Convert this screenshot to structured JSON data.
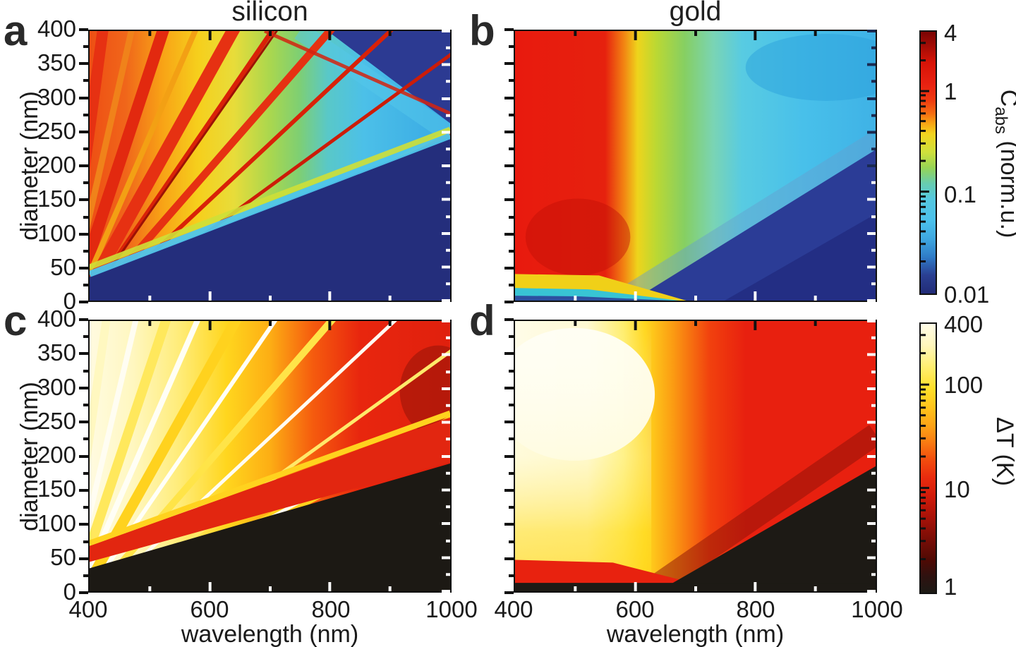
{
  "titles": {
    "left": "silicon",
    "right": "gold"
  },
  "panels": {
    "a": "a",
    "b": "b",
    "c": "c",
    "d": "d"
  },
  "axes": {
    "y_label": "diameter (nm)",
    "x_label": "wavelength (nm)",
    "y_ticks": [
      "400",
      "350",
      "300",
      "250",
      "200",
      "150",
      "100",
      "50",
      "0"
    ],
    "x_ticks": [
      "400",
      "600",
      "800",
      "1000"
    ]
  },
  "colorbars": {
    "abs": {
      "sym": "C",
      "sub": "abs",
      "unit": " (norm.u.)",
      "ticks": [
        "4",
        "1",
        "0.1",
        "0.01"
      ]
    },
    "dt": {
      "title": "ΔT (K)",
      "ticks": [
        "400",
        "100",
        "10",
        "1"
      ]
    }
  },
  "chart_data": [
    {
      "id": "a",
      "type": "heatmap",
      "title": "silicon",
      "panel_letter": "a",
      "x": {
        "label": "wavelength (nm)",
        "range": [
          400,
          1000
        ],
        "ticks": [
          400,
          600,
          800,
          1000
        ],
        "minor_ticks": [
          500,
          700,
          900
        ]
      },
      "y": {
        "label": "diameter (nm)",
        "range": [
          0,
          400
        ],
        "ticks": [
          0,
          50,
          100,
          150,
          200,
          250,
          300,
          350,
          400
        ]
      },
      "z": {
        "label": "Cabs (norm.u.)",
        "scale": "log",
        "range": [
          0.01,
          4
        ],
        "ticks": [
          4,
          1,
          0.1,
          0.01
        ],
        "colormap": "jet"
      },
      "description": "Fan of narrow Mie-resonance absorption bands radiating from small diameter / short wavelength toward large diameter / long wavelength. Cabs ~ 1-4 (red bands) over orange-yellow background in the upper-left half; cyan wedges (~0.05-0.1) between resonance orders at long wavelength; Cabs ~ 0.01 (dark blue) in the lower-right triangle below the fundamental resonance, whose edge runs from about (400 nm, 55 nm) to (1000 nm, 270 nm)."
    },
    {
      "id": "b",
      "type": "heatmap",
      "title": "gold",
      "panel_letter": "b",
      "x": {
        "label": "wavelength (nm)",
        "range": [
          400,
          1000
        ],
        "ticks": [
          400,
          600,
          800,
          1000
        ],
        "minor_ticks": [
          500,
          700,
          900
        ]
      },
      "y": {
        "label": "diameter (nm)",
        "range": [
          0,
          400
        ],
        "ticks": [
          0,
          50,
          100,
          150,
          200,
          250,
          300,
          350,
          400
        ]
      },
      "z": {
        "label": "Cabs (norm.u.)",
        "scale": "log",
        "range": [
          0.01,
          4
        ],
        "ticks": [
          4,
          1,
          0.1,
          0.01
        ],
        "colormap": "jet"
      },
      "description": "High absorption (Cabs ~ 1-4, red) for 400-550 nm at all diameters; sharp yellow-green transition band near 550-620 nm; low absorption (cyan, ~0.05-0.1) beyond 650 nm at large diameters, decreasing to dark blue (~0.01) toward long wavelengths and small diameters (lower right); thin yellow strip near zero diameter at short wavelengths."
    },
    {
      "id": "c",
      "type": "heatmap",
      "title": "silicon",
      "panel_letter": "c",
      "x": {
        "label": "wavelength (nm)",
        "range": [
          400,
          1000
        ],
        "ticks": [
          400,
          600,
          800,
          1000
        ],
        "minor_ticks": [
          500,
          700,
          900
        ]
      },
      "y": {
        "label": "diameter (nm)",
        "range": [
          0,
          400
        ],
        "ticks": [
          0,
          50,
          100,
          150,
          200,
          250,
          300,
          350,
          400
        ]
      },
      "z": {
        "label": "ΔT (K)",
        "scale": "log",
        "range": [
          1,
          400
        ],
        "ticks": [
          400,
          100,
          10,
          1
        ],
        "colormap": "hot"
      },
      "description": "Photoinduced heating along silicon Mie resonances: bright white-yellow bands (ΔT ~ 100-400 K) fanning from lower-left over yellow-orange background, red bands (~10-50 K) between resonances at long wavelength; negligible heating (ΔT ~ 1 K, black) in the lower-right triangle below the fundamental resonance."
    },
    {
      "id": "d",
      "type": "heatmap",
      "title": "gold",
      "panel_letter": "d",
      "x": {
        "label": "wavelength (nm)",
        "range": [
          400,
          1000
        ],
        "ticks": [
          400,
          600,
          800,
          1000
        ],
        "minor_ticks": [
          500,
          700,
          900
        ]
      },
      "y": {
        "label": "diameter (nm)",
        "range": [
          0,
          400
        ],
        "ticks": [
          0,
          50,
          100,
          150,
          200,
          250,
          300,
          350,
          400
        ]
      },
      "z": {
        "label": "ΔT (K)",
        "scale": "log",
        "range": [
          1,
          400
        ],
        "ticks": [
          400,
          100,
          10,
          1
        ],
        "colormap": "hot"
      },
      "description": "Strong heating (ΔT ~ 100-400 K, white-yellow) for 400-550 nm excitation at diameters above ~50 nm, yellow band near 550-600 nm; moderate heating (~10-50 K, red) at longer wavelengths for large diameters; negligible heating (black) for small diameters and for long wavelengths at the bottom-right."
    }
  ]
}
